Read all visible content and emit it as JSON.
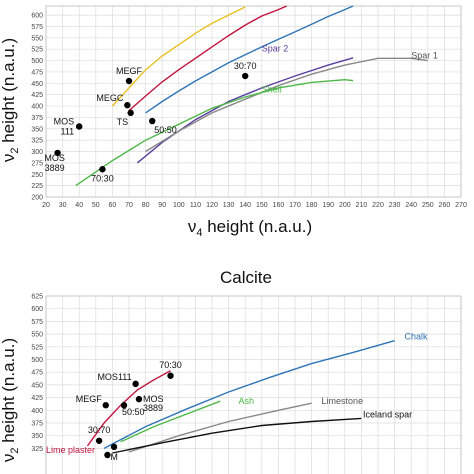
{
  "chart_data": [
    {
      "type": "scatter",
      "title": "",
      "xlabel": "v4 height (n.a.u.)",
      "ylabel": "v2 height (n.a.u.)",
      "xlim": [
        20,
        270
      ],
      "ylim": [
        200,
        620
      ],
      "x_ticks": [
        "20",
        "30",
        "40",
        "50",
        "60",
        "70",
        "80",
        "90",
        "100",
        "110",
        "120",
        "130",
        "140",
        "150",
        "160",
        "170",
        "180",
        "190",
        "200",
        "210",
        "220",
        "230",
        "240",
        "250",
        "260",
        "270"
      ],
      "y_ticks": [
        "200",
        "225",
        "250",
        "275",
        "300",
        "325",
        "350",
        "375",
        "400",
        "425",
        "450",
        "475",
        "500",
        "525",
        "550",
        "575",
        "600"
      ],
      "grid": true,
      "points": [
        {
          "label": "MEGF",
          "x": 70,
          "y": 455
        },
        {
          "label": "MEGC",
          "x": 69,
          "y": 402
        },
        {
          "label": "TS",
          "x": 71,
          "y": 385
        },
        {
          "label": "MOS 111",
          "x": 40,
          "y": 355
        },
        {
          "label": "50:50",
          "x": 84,
          "y": 367
        },
        {
          "label": "30:70",
          "x": 140,
          "y": 466
        },
        {
          "label": "MOS 3889",
          "x": 27,
          "y": 297
        },
        {
          "label": "70:30",
          "x": 54,
          "y": 261
        }
      ],
      "series": [
        {
          "name": "",
          "color": "#e8c020",
          "x": [
            60,
            70,
            80,
            90,
            100,
            110,
            120,
            130,
            140
          ],
          "y": [
            400,
            440,
            480,
            510,
            535,
            560,
            582,
            600,
            618
          ]
        },
        {
          "name": "",
          "color": "#c0143c",
          "x": [
            70,
            80,
            90,
            100,
            110,
            120,
            130,
            140,
            150,
            160,
            165
          ],
          "y": [
            390,
            422,
            453,
            480,
            505,
            530,
            555,
            578,
            598,
            612,
            620
          ]
        },
        {
          "name": "",
          "color": "#2e75b6",
          "x": [
            80,
            90,
            100,
            110,
            120,
            130,
            140,
            150,
            160,
            170,
            180,
            190,
            200,
            205
          ],
          "y": [
            385,
            410,
            433,
            455,
            475,
            495,
            513,
            530,
            547,
            563,
            580,
            597,
            612,
            620
          ]
        },
        {
          "name": "Spar 2",
          "color": "#5b3fa0",
          "x": [
            75,
            90,
            110,
            130,
            150,
            170,
            190,
            205
          ],
          "y": [
            275,
            320,
            370,
            410,
            440,
            466,
            490,
            506
          ]
        },
        {
          "name": "Spar 1",
          "color": "#888888",
          "x": [
            80,
            100,
            120,
            140,
            160,
            180,
            200,
            220,
            240,
            250
          ],
          "y": [
            300,
            345,
            385,
            415,
            445,
            470,
            490,
            505,
            505,
            500
          ]
        },
        {
          "name": "Shell",
          "color": "#4db848",
          "x": [
            38,
            60,
            80,
            100,
            120,
            140,
            160,
            180,
            200,
            205
          ],
          "y": [
            225,
            280,
            325,
            360,
            395,
            420,
            440,
            452,
            458,
            456
          ]
        }
      ]
    },
    {
      "type": "scatter",
      "title": "Calcite",
      "xlabel": "",
      "ylabel": "v2 height (n.a.u.)",
      "ylim": [
        315,
        630
      ],
      "y_ticks": [
        "325",
        "350",
        "375",
        "400",
        "425",
        "450",
        "475",
        "500",
        "525",
        "550",
        "575",
        "600",
        "625"
      ],
      "grid": true,
      "points": [
        {
          "label": "MOS111",
          "x": 74,
          "y": 452
        },
        {
          "label": "70:30",
          "x": 95,
          "y": 468
        },
        {
          "label": "MEGF",
          "x": 56,
          "y": 410
        },
        {
          "label": "50:50",
          "x": 67,
          "y": 410
        },
        {
          "label": "MOS 3889",
          "x": 76,
          "y": 422
        },
        {
          "label": "30:70",
          "x": 52,
          "y": 340
        },
        {
          "label": "",
          "x": 61,
          "y": 328
        },
        {
          "label": "M",
          "x": 57,
          "y": 312
        }
      ],
      "series": [
        {
          "name": "Lime plaster",
          "color": "#c0143c",
          "x": [
            45,
            55,
            65,
            75,
            85,
            95
          ],
          "y": [
            330,
            375,
            410,
            440,
            460,
            478
          ]
        },
        {
          "name": "Chalk",
          "color": "#2e75b6",
          "x": [
            55,
            80,
            105,
            130,
            155,
            180,
            205,
            230
          ],
          "y": [
            325,
            368,
            403,
            436,
            465,
            492,
            514,
            537
          ]
        },
        {
          "name": "Ash",
          "color": "#4db848",
          "x": [
            65,
            85,
            105,
            125
          ],
          "y": [
            338,
            368,
            393,
            418
          ]
        },
        {
          "name": "Limestone",
          "color": "#888888",
          "x": [
            70,
            100,
            130,
            160,
            180
          ],
          "y": [
            318,
            350,
            378,
            400,
            414
          ]
        },
        {
          "name": "Iceland spar",
          "color": "#111111",
          "x": [
            60,
            90,
            120,
            150,
            180,
            210
          ],
          "y": [
            316,
            336,
            355,
            370,
            378,
            384
          ]
        }
      ]
    }
  ]
}
